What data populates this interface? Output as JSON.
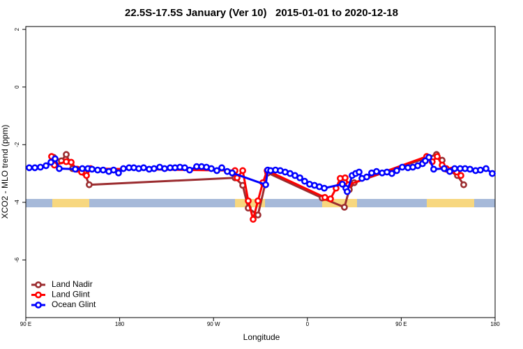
{
  "chart_data": {
    "type": "line",
    "title": "22.5S-17.5S January (Ver 10)   2015-01-01 to 2020-12-18",
    "xlabel": "Longitude",
    "ylabel": "XCO2 - MLO trend (ppm)",
    "xlim": [
      90,
      540
    ],
    "ylim": [
      -8.0,
      2.1
    ],
    "xticks": [
      {
        "value": 90,
        "label": "90 E"
      },
      {
        "value": 180,
        "label": "180"
      },
      {
        "value": 270,
        "label": "90 W"
      },
      {
        "value": 360,
        "label": "0"
      },
      {
        "value": 450,
        "label": "90 E"
      },
      {
        "value": 540,
        "label": "180"
      }
    ],
    "yticks": [
      2,
      0,
      -2,
      -4,
      -6
    ],
    "legend": "bottomleft",
    "series": [
      {
        "name": "Land Nadir",
        "color": "#9b2d30",
        "x": [
          116.7,
          124.1,
          128.8,
          134.8,
          139.5,
          146.2,
          150.8,
          290.6,
          298.0,
          303.3,
          312.6,
          322.0,
          374.2,
          395.5,
          400.2,
          404.9,
          483.8,
          489.2,
          493.2,
          503.9,
          509.9
        ],
        "values": [
          -2.44,
          -2.56,
          -2.34,
          -2.83,
          -2.85,
          -2.98,
          -3.39,
          -3.15,
          -3.41,
          -4.2,
          -4.44,
          -2.98,
          -3.85,
          -4.17,
          -3.56,
          -3.32,
          -2.34,
          -2.54,
          -2.85,
          -3.07,
          -3.39
        ]
      },
      {
        "name": "Land Glint",
        "color": "#ff0000",
        "x": [
          114.7,
          117.4,
          128.8,
          133.5,
          138.8,
          143.5,
          148.2,
          152.2,
          290.6,
          292.6,
          298.0,
          303.3,
          308.0,
          312.6,
          317.3,
          321.4,
          376.8,
          382.2,
          387.5,
          391.5,
          396.2,
          399.5,
          474.4,
          479.7,
          484.5,
          489.2,
          493.2,
          498.5,
          503.2,
          507.2
        ],
        "values": [
          -2.41,
          -2.71,
          -2.59,
          -2.61,
          -2.85,
          -2.95,
          -3.07,
          -2.83,
          -2.9,
          -3.15,
          -2.9,
          -3.95,
          -4.59,
          -3.95,
          -3.32,
          -2.9,
          -3.83,
          -3.88,
          -3.51,
          -3.17,
          -3.15,
          -3.39,
          -2.41,
          -2.59,
          -2.41,
          -2.71,
          -2.83,
          -2.88,
          -2.95,
          -3.07
        ]
      },
      {
        "name": "Ocean Glint",
        "color": "#0000ff",
        "x": [
          93.3,
          98.7,
          104.0,
          109.4,
          114.1,
          118.1,
          122.1,
          137.5,
          144.2,
          149.5,
          153.5,
          158.9,
          164.2,
          169.6,
          174.2,
          178.9,
          183.6,
          189.0,
          193.6,
          198.3,
          203.0,
          208.3,
          213.0,
          218.4,
          223.1,
          228.4,
          233.1,
          237.8,
          242.4,
          247.1,
          253.8,
          258.5,
          263.2,
          267.9,
          273.2,
          277.9,
          283.2,
          287.9,
          320.0,
          322.0,
          324.7,
          329.4,
          334.0,
          338.7,
          343.4,
          348.1,
          352.8,
          357.4,
          362.1,
          366.8,
          371.5,
          376.2,
          393.5,
          396.9,
          398.2,
          402.9,
          406.3,
          409.6,
          412.3,
          416.9,
          421.6,
          426.3,
          431.7,
          436.3,
          441.0,
          445.7,
          451.0,
          456.4,
          461.1,
          465.8,
          470.4,
          473.1,
          476.5,
          481.1,
          491.2,
          496.5,
          501.2,
          506.5,
          511.2,
          515.9,
          521.3,
          525.9,
          531.3,
          537.3
        ],
        "values": [
          -2.8,
          -2.8,
          -2.78,
          -2.73,
          -2.61,
          -2.49,
          -2.83,
          -2.85,
          -2.83,
          -2.83,
          -2.85,
          -2.88,
          -2.88,
          -2.93,
          -2.88,
          -2.98,
          -2.83,
          -2.8,
          -2.8,
          -2.83,
          -2.8,
          -2.85,
          -2.83,
          -2.78,
          -2.83,
          -2.8,
          -2.8,
          -2.78,
          -2.8,
          -2.88,
          -2.76,
          -2.76,
          -2.78,
          -2.83,
          -2.9,
          -2.8,
          -2.93,
          -2.98,
          -3.39,
          -2.88,
          -2.9,
          -2.88,
          -2.9,
          -2.95,
          -3.0,
          -3.07,
          -3.15,
          -3.27,
          -3.37,
          -3.41,
          -3.46,
          -3.51,
          -3.37,
          -3.51,
          -3.63,
          -3.07,
          -3.0,
          -2.95,
          -3.17,
          -3.12,
          -2.98,
          -2.93,
          -2.98,
          -2.95,
          -3.0,
          -2.9,
          -2.78,
          -2.8,
          -2.78,
          -2.73,
          -2.66,
          -2.56,
          -2.44,
          -2.85,
          -2.83,
          -2.93,
          -2.83,
          -2.83,
          -2.83,
          -2.85,
          -2.9,
          -2.88,
          -2.83,
          -3.0
        ]
      }
    ]
  }
}
